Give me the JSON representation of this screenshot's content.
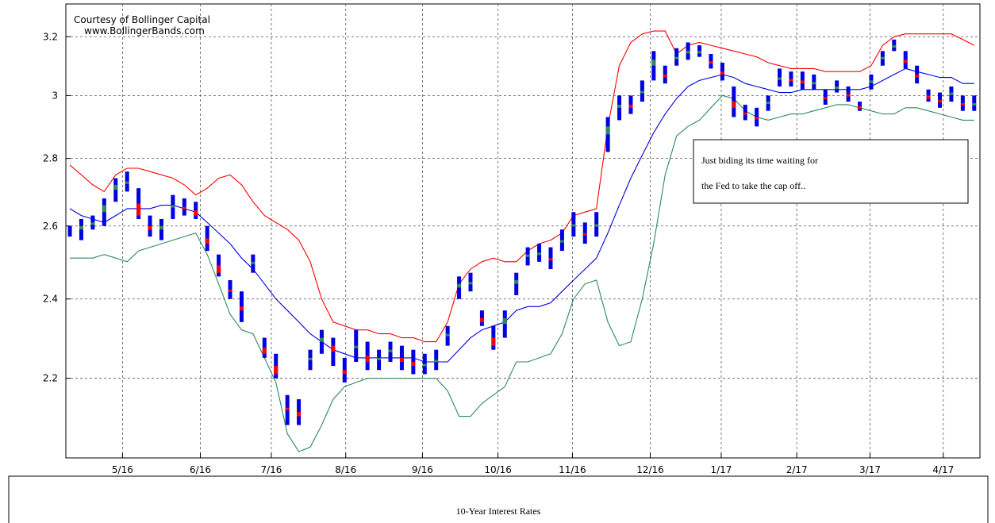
{
  "chart_data": {
    "type": "bollinger",
    "title": "10-Year Interest Rates",
    "annotations": [
      "Courtesy of Bollinger Capital",
      "www.BollingerBands.com"
    ],
    "note": [
      "Just biding its time waiting for",
      "the Fed to take the cap off.."
    ],
    "log_scale": true,
    "grid": true,
    "ylim": [
      2.016,
      3.317
    ],
    "yticks": [
      2.2,
      2.4,
      2.6,
      2.8,
      3,
      3.2
    ],
    "xlim": [
      -0.35,
      79.5
    ],
    "xticks": [
      {
        "value": 4.6,
        "label": "5/16"
      },
      {
        "value": 11.4,
        "label": "6/16"
      },
      {
        "value": 17.6,
        "label": "7/16"
      },
      {
        "value": 24.1,
        "label": "8/16"
      },
      {
        "value": 30.8,
        "label": "9/16"
      },
      {
        "value": 37.4,
        "label": "10/16"
      },
      {
        "value": 43.9,
        "label": "11/16"
      },
      {
        "value": 50.7,
        "label": "12/16"
      },
      {
        "value": 56.9,
        "label": "1/17"
      },
      {
        "value": 63.5,
        "label": "2/17"
      },
      {
        "value": 69.9,
        "label": "3/17"
      },
      {
        "value": 76.3,
        "label": "4/17"
      }
    ],
    "bars": {
      "color": "#0000e0",
      "up_color": "#2e8b57",
      "down_color": "#ff0000",
      "low": [
        2.57,
        2.56,
        2.59,
        2.6,
        2.67,
        2.7,
        2.62,
        2.57,
        2.56,
        2.62,
        2.63,
        2.62,
        2.53,
        2.46,
        2.4,
        2.34,
        2.47,
        2.25,
        2.2,
        2.09,
        2.09,
        2.22,
        2.26,
        2.23,
        2.19,
        2.24,
        2.22,
        2.22,
        2.24,
        2.22,
        2.21,
        2.21,
        2.22,
        2.28,
        2.4,
        2.42,
        2.33,
        2.27,
        2.3,
        2.41,
        2.49,
        2.5,
        2.48,
        2.53,
        2.57,
        2.55,
        2.57,
        2.82,
        2.92,
        2.94,
        2.98,
        3.05,
        3.04,
        3.1,
        3.12,
        3.13,
        3.09,
        3.05,
        2.93,
        2.92,
        2.9,
        2.95,
        3.03,
        3.03,
        3.02,
        3.02,
        2.97,
        3.01,
        2.98,
        2.95,
        3.02,
        3.1,
        3.15,
        3.09,
        3.04,
        2.98,
        2.96,
        2.98,
        2.95,
        2.95
      ],
      "high": [
        2.6,
        2.62,
        2.63,
        2.68,
        2.74,
        2.76,
        2.71,
        2.63,
        2.62,
        2.69,
        2.68,
        2.67,
        2.6,
        2.52,
        2.45,
        2.42,
        2.52,
        2.3,
        2.26,
        2.16,
        2.15,
        2.27,
        2.32,
        2.3,
        2.25,
        2.32,
        2.29,
        2.27,
        2.29,
        2.28,
        2.27,
        2.26,
        2.27,
        2.33,
        2.46,
        2.47,
        2.37,
        2.33,
        2.37,
        2.47,
        2.54,
        2.55,
        2.54,
        2.59,
        2.64,
        2.61,
        2.64,
        2.93,
        3.0,
        3.0,
        3.05,
        3.15,
        3.1,
        3.16,
        3.18,
        3.17,
        3.14,
        3.11,
        3.03,
        2.97,
        2.96,
        3.0,
        3.09,
        3.08,
        3.08,
        3.07,
        3.02,
        3.05,
        3.03,
        2.98,
        3.07,
        3.15,
        3.19,
        3.15,
        3.1,
        3.02,
        3.01,
        3.03,
        3.0,
        3.0
      ],
      "close": [
        2.58,
        2.6,
        2.61,
        2.66,
        2.72,
        2.73,
        2.63,
        2.59,
        2.6,
        2.66,
        2.65,
        2.63,
        2.55,
        2.47,
        2.42,
        2.37,
        2.5,
        2.26,
        2.21,
        2.13,
        2.11,
        2.25,
        2.3,
        2.28,
        2.21,
        2.28,
        2.24,
        2.25,
        2.27,
        2.24,
        2.23,
        2.23,
        2.24,
        2.31,
        2.44,
        2.44,
        2.34,
        2.28,
        2.35,
        2.45,
        2.52,
        2.52,
        2.51,
        2.56,
        2.6,
        2.58,
        2.6,
        2.9,
        2.97,
        2.96,
        3.01,
        3.12,
        3.06,
        3.13,
        3.15,
        3.15,
        3.11,
        3.07,
        2.96,
        2.94,
        2.93,
        2.98,
        3.06,
        3.05,
        3.04,
        3.04,
        2.99,
        3.03,
        3.0,
        2.96,
        3.05,
        3.13,
        3.17,
        3.11,
        3.06,
        2.99,
        2.98,
        3.01,
        2.97,
        2.97
      ]
    },
    "series": [
      {
        "color": "#ff0000",
        "values": [
          2.78,
          2.75,
          2.72,
          2.7,
          2.75,
          2.77,
          2.77,
          2.76,
          2.75,
          2.74,
          2.72,
          2.69,
          2.71,
          2.74,
          2.75,
          2.72,
          2.67,
          2.63,
          2.61,
          2.59,
          2.56,
          2.5,
          2.4,
          2.34,
          2.33,
          2.32,
          2.32,
          2.31,
          2.31,
          2.3,
          2.3,
          2.29,
          2.29,
          2.34,
          2.44,
          2.48,
          2.5,
          2.51,
          2.5,
          2.5,
          2.53,
          2.55,
          2.56,
          2.58,
          2.63,
          2.64,
          2.65,
          2.9,
          3.1,
          3.18,
          3.21,
          3.22,
          3.22,
          3.14,
          3.17,
          3.18,
          3.17,
          3.16,
          3.15,
          3.14,
          3.13,
          3.11,
          3.1,
          3.09,
          3.09,
          3.09,
          3.08,
          3.08,
          3.08,
          3.08,
          3.1,
          3.17,
          3.2,
          3.21,
          3.21,
          3.21,
          3.21,
          3.21,
          3.19,
          3.17
        ]
      },
      {
        "color": "#0000e0",
        "values": [
          2.65,
          2.63,
          2.62,
          2.61,
          2.63,
          2.65,
          2.65,
          2.65,
          2.66,
          2.66,
          2.65,
          2.64,
          2.61,
          2.58,
          2.55,
          2.51,
          2.48,
          2.44,
          2.4,
          2.37,
          2.34,
          2.31,
          2.29,
          2.27,
          2.26,
          2.25,
          2.25,
          2.25,
          2.25,
          2.25,
          2.25,
          2.24,
          2.24,
          2.24,
          2.27,
          2.3,
          2.32,
          2.33,
          2.34,
          2.37,
          2.38,
          2.38,
          2.39,
          2.42,
          2.45,
          2.48,
          2.51,
          2.58,
          2.66,
          2.74,
          2.81,
          2.88,
          2.94,
          2.99,
          3.03,
          3.05,
          3.06,
          3.07,
          3.06,
          3.04,
          3.03,
          3.02,
          3.01,
          3.01,
          3.02,
          3.02,
          3.02,
          3.02,
          3.02,
          3.02,
          3.03,
          3.05,
          3.07,
          3.09,
          3.08,
          3.07,
          3.06,
          3.06,
          3.04,
          3.04
        ]
      },
      {
        "color": "#2e8b57",
        "values": [
          2.51,
          2.51,
          2.51,
          2.52,
          2.51,
          2.5,
          2.53,
          2.54,
          2.55,
          2.56,
          2.57,
          2.58,
          2.52,
          2.44,
          2.36,
          2.32,
          2.31,
          2.25,
          2.19,
          2.07,
          2.03,
          2.04,
          2.09,
          2.15,
          2.18,
          2.19,
          2.2,
          2.2,
          2.2,
          2.2,
          2.2,
          2.2,
          2.2,
          2.17,
          2.11,
          2.11,
          2.14,
          2.16,
          2.18,
          2.24,
          2.24,
          2.25,
          2.26,
          2.31,
          2.4,
          2.44,
          2.45,
          2.34,
          2.28,
          2.29,
          2.4,
          2.55,
          2.75,
          2.87,
          2.9,
          2.92,
          2.96,
          3.0,
          2.99,
          2.95,
          2.93,
          2.92,
          2.93,
          2.94,
          2.94,
          2.95,
          2.96,
          2.97,
          2.97,
          2.96,
          2.95,
          2.94,
          2.94,
          2.96,
          2.96,
          2.95,
          2.94,
          2.93,
          2.92,
          2.92
        ]
      }
    ]
  }
}
